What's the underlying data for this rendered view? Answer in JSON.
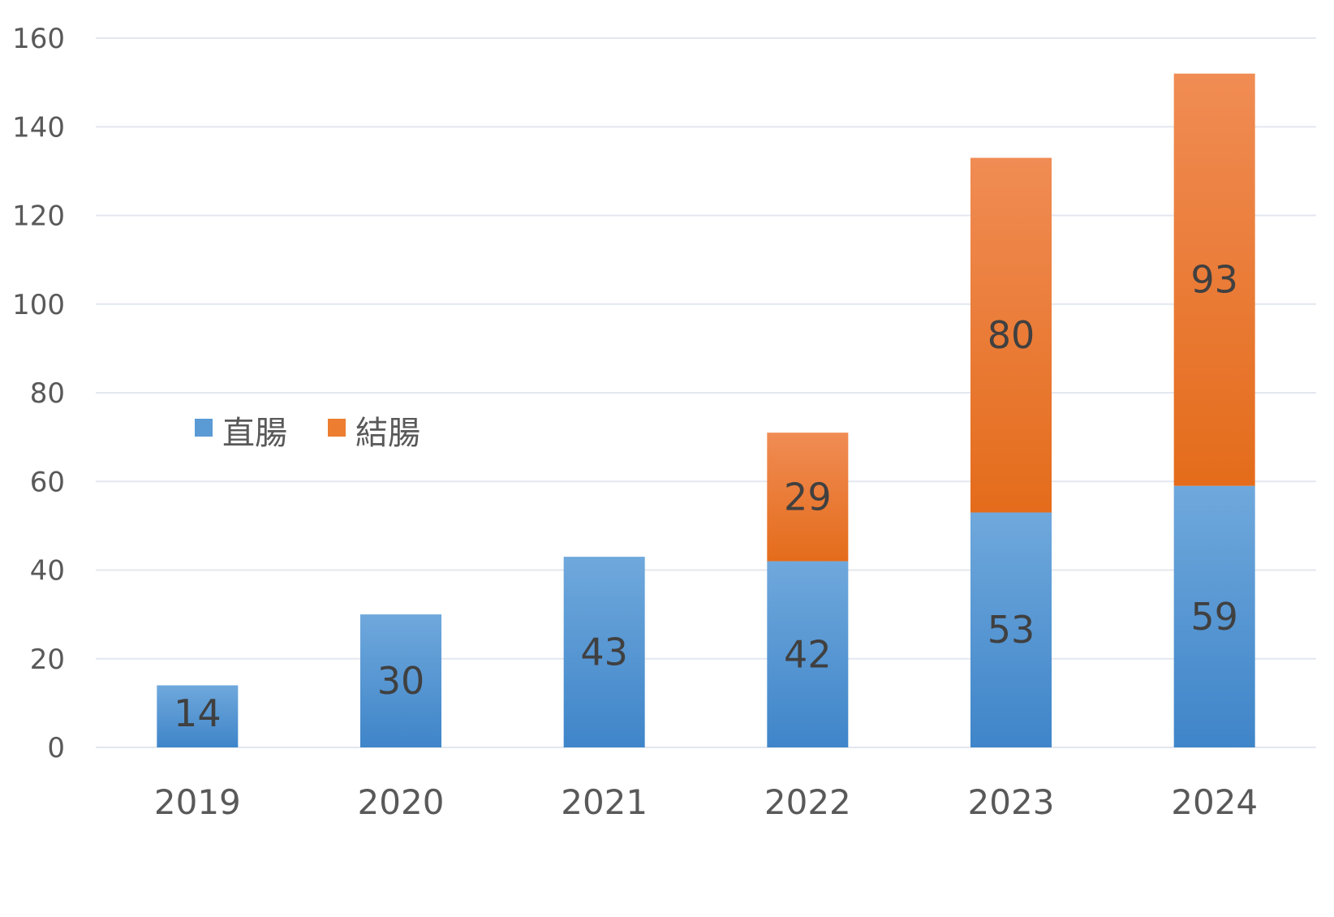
{
  "chart_data": {
    "type": "bar",
    "stacked": true,
    "categories": [
      "2019",
      "2020",
      "2021",
      "2022",
      "2023",
      "2024"
    ],
    "series": [
      {
        "name": "直腸",
        "values": [
          14,
          30,
          43,
          42,
          53,
          59
        ],
        "color": "#5b9bd5"
      },
      {
        "name": "結腸",
        "values": [
          0,
          0,
          0,
          29,
          80,
          93
        ],
        "color": "#ed7d31"
      }
    ],
    "data_labels": [
      [
        "14",
        "30",
        "43",
        "42",
        "53",
        "59"
      ],
      [
        "",
        "",
        "",
        "29",
        "80",
        "93"
      ]
    ],
    "ylim": [
      0,
      160
    ],
    "yticks": [
      "0",
      "20",
      "40",
      "60",
      "80",
      "100",
      "120",
      "140",
      "160"
    ],
    "grid": true,
    "legend_position": "middle-left",
    "title": "",
    "xlabel": "",
    "ylabel": ""
  }
}
